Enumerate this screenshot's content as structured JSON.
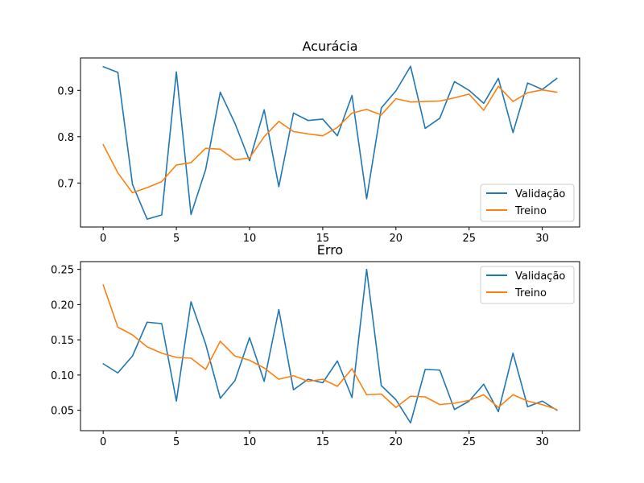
{
  "colors": {
    "validation": "#1f77b4",
    "training": "#ff7f0e"
  },
  "chart_data": [
    {
      "type": "line",
      "title": "Acurácia",
      "xlabel": "",
      "ylabel": "",
      "xlim": [
        -1.55,
        32.55
      ],
      "ylim": [
        0.605,
        0.97
      ],
      "xticks": [
        0,
        5,
        10,
        15,
        20,
        25,
        30
      ],
      "yticks": [
        0.7,
        0.8,
        0.9
      ],
      "ytick_labels": [
        "0.7",
        "0.8",
        "0.9"
      ],
      "legend_position": "lower right",
      "grid": false,
      "x": [
        0,
        1,
        2,
        3,
        4,
        5,
        6,
        7,
        8,
        9,
        10,
        11,
        12,
        13,
        14,
        15,
        16,
        17,
        18,
        19,
        20,
        21,
        22,
        23,
        24,
        25,
        26,
        27,
        28,
        29,
        30,
        31
      ],
      "series": [
        {
          "name": "Validação",
          "color": "#1f77b4",
          "values": [
            0.951,
            0.939,
            0.697,
            0.622,
            0.631,
            0.94,
            0.632,
            0.729,
            0.896,
            0.829,
            0.748,
            0.858,
            0.692,
            0.851,
            0.835,
            0.838,
            0.802,
            0.889,
            0.666,
            0.862,
            0.899,
            0.952,
            0.818,
            0.84,
            0.919,
            0.9,
            0.872,
            0.926,
            0.809,
            0.916,
            0.902,
            0.926
          ]
        },
        {
          "name": "Treino",
          "color": "#ff7f0e",
          "values": [
            0.783,
            0.722,
            0.679,
            0.69,
            0.703,
            0.739,
            0.744,
            0.775,
            0.773,
            0.75,
            0.754,
            0.8,
            0.833,
            0.811,
            0.806,
            0.802,
            0.82,
            0.851,
            0.859,
            0.847,
            0.882,
            0.875,
            0.876,
            0.877,
            0.884,
            0.892,
            0.857,
            0.909,
            0.876,
            0.895,
            0.901,
            0.896
          ]
        }
      ]
    },
    {
      "type": "line",
      "title": "Erro",
      "xlabel": "",
      "ylabel": "",
      "xlim": [
        -1.55,
        32.55
      ],
      "ylim": [
        0.021,
        0.261
      ],
      "xticks": [
        0,
        5,
        10,
        15,
        20,
        25,
        30
      ],
      "yticks": [
        0.05,
        0.1,
        0.15,
        0.2,
        0.25
      ],
      "ytick_labels": [
        "0.05",
        "0.10",
        "0.15",
        "0.20",
        "0.25"
      ],
      "legend_position": "upper right",
      "grid": false,
      "x": [
        0,
        1,
        2,
        3,
        4,
        5,
        6,
        7,
        8,
        9,
        10,
        11,
        12,
        13,
        14,
        15,
        16,
        17,
        18,
        19,
        20,
        21,
        22,
        23,
        24,
        25,
        26,
        27,
        28,
        29,
        30,
        31
      ],
      "series": [
        {
          "name": "Validação",
          "color": "#1f77b4",
          "values": [
            0.116,
            0.103,
            0.127,
            0.175,
            0.173,
            0.063,
            0.204,
            0.144,
            0.067,
            0.092,
            0.153,
            0.091,
            0.193,
            0.079,
            0.094,
            0.089,
            0.12,
            0.068,
            0.25,
            0.085,
            0.065,
            0.032,
            0.108,
            0.107,
            0.051,
            0.063,
            0.087,
            0.048,
            0.131,
            0.055,
            0.063,
            0.05
          ]
        },
        {
          "name": "Treino",
          "color": "#ff7f0e",
          "values": [
            0.228,
            0.168,
            0.157,
            0.14,
            0.131,
            0.125,
            0.124,
            0.108,
            0.148,
            0.127,
            0.121,
            0.11,
            0.094,
            0.099,
            0.091,
            0.094,
            0.084,
            0.109,
            0.072,
            0.073,
            0.054,
            0.07,
            0.069,
            0.058,
            0.06,
            0.064,
            0.072,
            0.054,
            0.072,
            0.063,
            0.058,
            0.051
          ]
        }
      ]
    }
  ]
}
